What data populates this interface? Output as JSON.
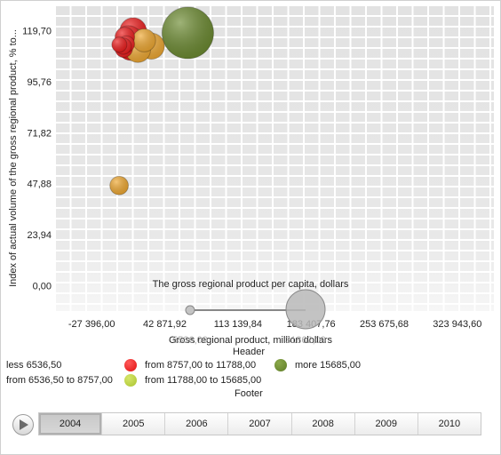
{
  "chart_data": {
    "type": "scatter",
    "title": "",
    "ylabel": "Index of actual volume of the gross regional product, % to...",
    "xlabel": "Gross regional product, million dollars",
    "xlim": [
      -62531,
      359079
    ],
    "ylim": [
      -11.97,
      131.67
    ],
    "x_ticks": [
      "-27 396,00",
      "42 871,92",
      "113 139,84",
      "183 407,76",
      "253 675,68",
      "323 943,60"
    ],
    "x_tick_values": [
      -27396,
      42871.92,
      113139.84,
      183407.76,
      253675.68,
      323943.6
    ],
    "y_ticks": [
      "0,00",
      "23,94",
      "47,88",
      "71,82",
      "95,76",
      "119,70"
    ],
    "y_tick_values": [
      0,
      23.94,
      47.88,
      71.82,
      95.76,
      119.7
    ],
    "grid": true,
    "points": [
      {
        "x": 65000,
        "y": 118.7,
        "size": 35000,
        "color": "#6b8a2f"
      },
      {
        "x": 12500,
        "y": 119.5,
        "size": 9500,
        "color": "#ee1c1c"
      },
      {
        "x": 14000,
        "y": 114.3,
        "size": 9500,
        "color": "#f0a830"
      },
      {
        "x": 30000,
        "y": 112.5,
        "size": 9000,
        "color": "#f0a830"
      },
      {
        "x": 8000,
        "y": 116.0,
        "size": 9000,
        "color": "#ee1c1c"
      },
      {
        "x": 10000,
        "y": 112.0,
        "size": 9000,
        "color": "#ee1c1c"
      },
      {
        "x": 17000,
        "y": 110.8,
        "size": 8500,
        "color": "#f0a830"
      },
      {
        "x": 23000,
        "y": 115.2,
        "size": 7000,
        "color": "#f0a830"
      },
      {
        "x": 4500,
        "y": 116.8,
        "size": 5000,
        "color": "#ee1c1c"
      },
      {
        "x": 3500,
        "y": 111.3,
        "size": 4000,
        "color": "#ee1c1c"
      },
      {
        "x": 6000,
        "y": 113.5,
        "size": 3500,
        "color": "#ee1c1c"
      },
      {
        "x": 3000,
        "y": 112.5,
        "size": 3500,
        "color": "#ee1c1c"
      },
      {
        "x": -750,
        "y": 113.2,
        "size": 3000,
        "color": "#ee1c1c"
      },
      {
        "x": -1000,
        "y": 47.0,
        "size": 4500,
        "color": "#f0a830"
      }
    ],
    "size_legend": {
      "title": "The gross regional product per capita, dollars",
      "min_label": "5536,00",
      "max_label": "31862,09"
    },
    "color_legend": {
      "header": "Header",
      "footer": "Footer",
      "items": [
        {
          "label": "less 6536,50",
          "color": "#f0a830"
        },
        {
          "label": "from 8757,00 to 11788,00",
          "color": "#ee1c1c"
        },
        {
          "label": "more 15685,00",
          "color": "#6b8a2f"
        },
        {
          "label": "from 6536,50 to 8757,00",
          "color": "#f0a830"
        },
        {
          "label": "from 11788,00 to 15685,00",
          "color": "#b7cf3a"
        }
      ]
    }
  },
  "timeline": {
    "years": [
      "2004",
      "2005",
      "2006",
      "2007",
      "2008",
      "2009",
      "2010"
    ],
    "selected": "2004"
  }
}
